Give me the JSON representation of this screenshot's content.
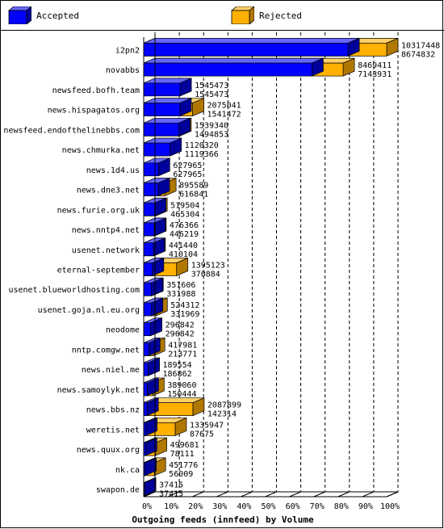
{
  "chart_data": {
    "type": "bar",
    "stacked": "overlaid-3d",
    "title": "Outgoing feeds (innfeed) by Volume",
    "xlabel": "",
    "ylabel": "",
    "xlim_percent": [
      0,
      100
    ],
    "x_tick_labels": [
      "0%",
      "10%",
      "20%",
      "30%",
      "40%",
      "50%",
      "60%",
      "70%",
      "80%",
      "90%",
      "100%"
    ],
    "grid": "dashed vertical",
    "legend_placement": "top",
    "colors": {
      "accepted": "#0000ff",
      "rejected": "#ffb000",
      "accepted_dark": "#00009a",
      "rejected_dark": "#b07800"
    },
    "series": [
      {
        "name": "Accepted",
        "key": "offered"
      },
      {
        "name": "Rejected",
        "key": "accepted"
      }
    ],
    "max_value": 10317448,
    "categories": [
      "i2pn2",
      "novabbs",
      "newsfeed.bofh.team",
      "news.hispagatos.org",
      "newsfeed.endofthelinebbs.com",
      "news.chmurka.net",
      "news.1d4.us",
      "news.dne3.net",
      "news.furie.org.uk",
      "news.nntp4.net",
      "usenet.network",
      "eternal-september",
      "usenet.blueworldhosting.com",
      "usenet.goja.nl.eu.org",
      "neodome",
      "nntp.comgw.net",
      "news.niel.me",
      "news.samoylyk.net",
      "news.bbs.nz",
      "weretis.net",
      "news.quux.org",
      "nk.ca",
      "swapon.de"
    ],
    "values_top": [
      10317448,
      8469411,
      1545473,
      2075041,
      1539340,
      1120320,
      627965,
      895589,
      519504,
      476366,
      441440,
      1395123,
      351606,
      524312,
      296842,
      417981,
      189554,
      389060,
      2087899,
      1335947,
      499681,
      451776,
      37415
    ],
    "values_bottom": [
      8674832,
      7143931,
      1545473,
      1541472,
      1494853,
      1119366,
      627965,
      616841,
      465304,
      446219,
      410104,
      370884,
      331988,
      331969,
      296842,
      213771,
      186862,
      150444,
      142314,
      87675,
      78111,
      56009,
      37415
    ]
  },
  "legend": {
    "accepted_label": "Accepted",
    "rejected_label": "Rejected"
  }
}
